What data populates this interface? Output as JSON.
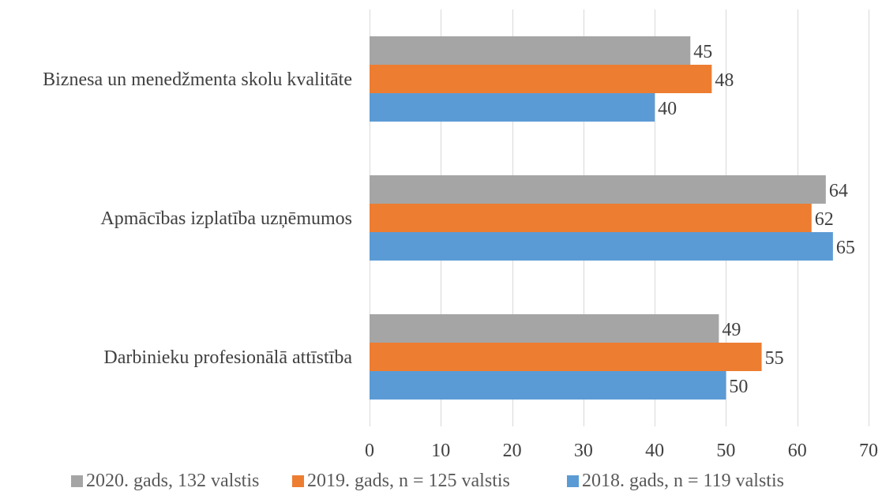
{
  "chart_data": {
    "type": "bar",
    "orientation": "horizontal",
    "title": "",
    "xlabel": "",
    "ylabel": "",
    "categories": [
      "Biznesa un menedžmenta skolu kvalitāte",
      "Apmācības izplatība uzņēmumos",
      "Darbinieku profesionālā attīstība"
    ],
    "series": [
      {
        "name": "2020. gads, 132 valstis",
        "color": "#a5a5a5",
        "values": [
          45,
          64,
          49
        ]
      },
      {
        "name": "2019. gads, n = 125 valstis",
        "color": "#ed7d31",
        "values": [
          48,
          62,
          55
        ]
      },
      {
        "name": "2018. gads, n = 119 valstis",
        "color": "#5b9bd5",
        "values": [
          40,
          65,
          50
        ]
      }
    ],
    "xlim": [
      0,
      70
    ],
    "xticks": [
      "0",
      "10",
      "20",
      "30",
      "40",
      "50",
      "60",
      "70"
    ],
    "grid": true,
    "legend_position": "bottom",
    "data_labels": true
  }
}
